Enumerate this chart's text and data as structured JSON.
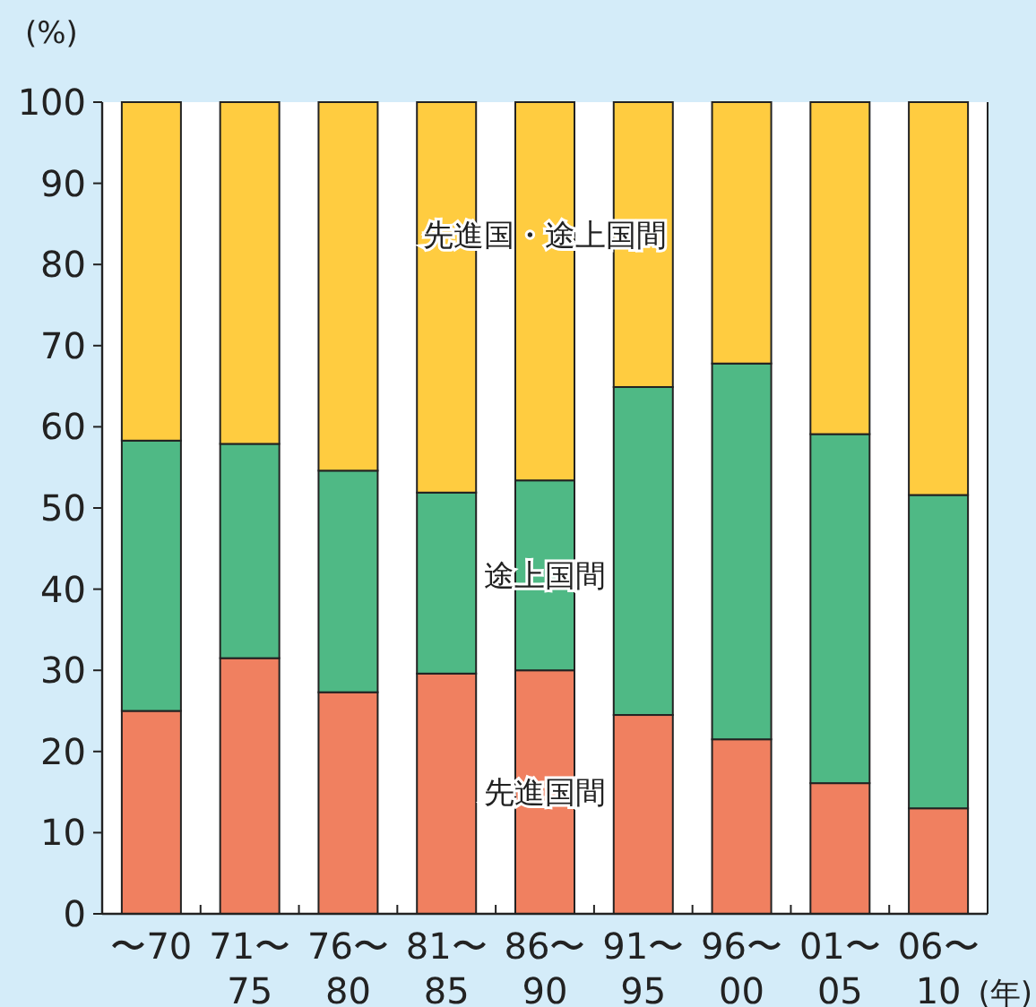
{
  "chart_data": {
    "type": "bar",
    "stacked": true,
    "ylabel": "(%)",
    "xlabel": "(年)",
    "categories": [
      "〜70",
      "71〜\n75",
      "76〜\n80",
      "81〜\n85",
      "86〜\n90",
      "91〜\n95",
      "96〜\n00",
      "01〜\n05",
      "06〜\n10"
    ],
    "series": [
      {
        "name": "先進国間",
        "color": "#f08060",
        "values": [
          25.0,
          31.5,
          27.3,
          29.6,
          30.0,
          24.5,
          21.5,
          16.1,
          13.0
        ]
      },
      {
        "name": "途上国間",
        "color": "#4fb985",
        "values": [
          33.3,
          26.4,
          27.3,
          22.3,
          23.4,
          40.4,
          46.3,
          43.0,
          38.6
        ]
      },
      {
        "name": "先進国・途上国間",
        "color": "#ffcc40",
        "values": [
          41.7,
          42.1,
          45.4,
          48.1,
          46.6,
          35.1,
          32.2,
          40.9,
          48.4
        ]
      }
    ],
    "ylim": [
      0,
      100
    ],
    "yticks": [
      0,
      10,
      20,
      30,
      40,
      50,
      60,
      70,
      80,
      90,
      100
    ],
    "grid": false
  }
}
